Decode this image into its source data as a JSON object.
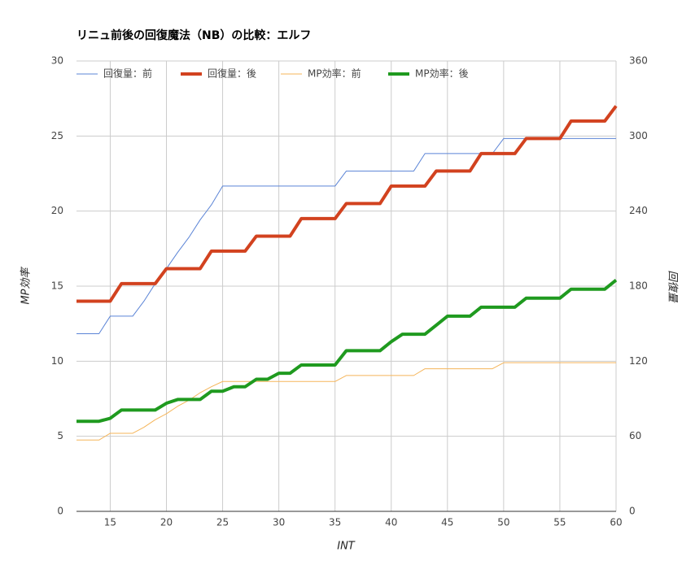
{
  "chart_data": {
    "type": "line",
    "title": "リニュ前後の回復魔法（NB）の比較：エルフ",
    "x_label": "INT",
    "y_label": "MP効率",
    "y2_label": "回復量",
    "x": [
      12,
      13,
      14,
      15,
      16,
      17,
      18,
      19,
      20,
      21,
      22,
      23,
      24,
      25,
      26,
      27,
      28,
      29,
      30,
      31,
      32,
      33,
      34,
      35,
      36,
      37,
      38,
      39,
      40,
      41,
      42,
      43,
      44,
      45,
      46,
      47,
      48,
      49,
      50,
      51,
      52,
      53,
      54,
      55,
      56,
      57,
      58,
      59,
      60
    ],
    "xlim": [
      12,
      60
    ],
    "xticks": [
      15,
      20,
      25,
      30,
      35,
      40,
      45,
      50,
      55,
      60
    ],
    "ylim": [
      0,
      30
    ],
    "yticks": [
      0,
      5,
      10,
      15,
      20,
      25,
      30
    ],
    "y2lim": [
      0,
      360
    ],
    "y2ticks": [
      0,
      60,
      120,
      180,
      240,
      300,
      360
    ],
    "grid": true,
    "legend": "top",
    "series": [
      {
        "name": "回復量：前",
        "color": "#5b84d6",
        "width": 1,
        "axis": "y2",
        "values": [
          142,
          142,
          142,
          156,
          156,
          156,
          168,
          182,
          194,
          207,
          219,
          233,
          245,
          260,
          260,
          260,
          260,
          260,
          260,
          260,
          260,
          260,
          260,
          260,
          272,
          272,
          272,
          272,
          272,
          272,
          272,
          286,
          286,
          286,
          286,
          286,
          286,
          286,
          298,
          298,
          298,
          298,
          298,
          298,
          298,
          298,
          298,
          298,
          298
        ]
      },
      {
        "name": "回復量：後",
        "color": "#d2421f",
        "width": 4,
        "axis": "y2",
        "values": [
          168,
          168,
          168,
          168,
          182,
          182,
          182,
          182,
          194,
          194,
          194,
          194,
          208,
          208,
          208,
          208,
          220,
          220,
          220,
          220,
          234,
          234,
          234,
          234,
          246,
          246,
          246,
          246,
          260,
          260,
          260,
          260,
          272,
          272,
          272,
          272,
          286,
          286,
          286,
          286,
          298,
          298,
          298,
          298,
          312,
          312,
          312,
          312,
          324
        ]
      },
      {
        "name": "MP効率：前",
        "color": "#f5b55a",
        "width": 1,
        "values": [
          4.75,
          4.75,
          4.75,
          5.2,
          5.2,
          5.2,
          5.6,
          6.1,
          6.5,
          7.0,
          7.4,
          7.9,
          8.3,
          8.65,
          8.65,
          8.65,
          8.65,
          8.65,
          8.65,
          8.65,
          8.65,
          8.65,
          8.65,
          8.65,
          9.05,
          9.05,
          9.05,
          9.05,
          9.05,
          9.05,
          9.05,
          9.5,
          9.5,
          9.5,
          9.5,
          9.5,
          9.5,
          9.5,
          9.9,
          9.9,
          9.9,
          9.9,
          9.9,
          9.9,
          9.9,
          9.9,
          9.9,
          9.9,
          9.9
        ]
      },
      {
        "name": "MP効率：後",
        "color": "#1f9a1f",
        "width": 4,
        "values": [
          6.0,
          6.0,
          6.0,
          6.2,
          6.75,
          6.75,
          6.75,
          6.75,
          7.2,
          7.45,
          7.45,
          7.45,
          8.0,
          8.0,
          8.3,
          8.3,
          8.8,
          8.8,
          9.2,
          9.2,
          9.75,
          9.75,
          9.75,
          9.75,
          10.7,
          10.7,
          10.7,
          10.7,
          11.3,
          11.8,
          11.8,
          11.8,
          12.4,
          13.0,
          13.0,
          13.0,
          13.6,
          13.6,
          13.6,
          13.6,
          14.2,
          14.2,
          14.2,
          14.2,
          14.8,
          14.8,
          14.8,
          14.8,
          15.4
        ]
      }
    ]
  }
}
